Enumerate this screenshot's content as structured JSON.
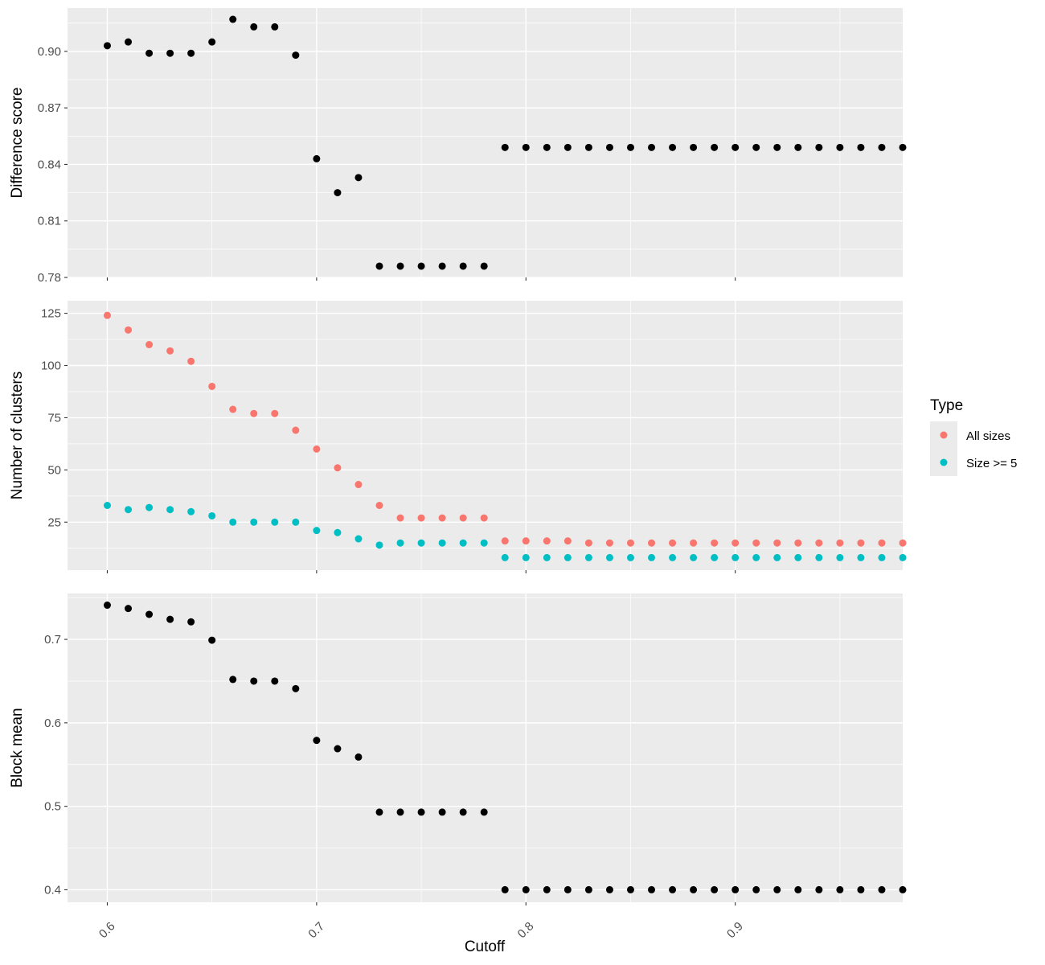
{
  "xlabel": "Cutoff",
  "x_ticks": [
    0.6,
    0.7,
    0.8,
    0.9
  ],
  "x_tick_labels": [
    "0.6",
    "0.7",
    "0.8",
    "0.9"
  ],
  "legend": {
    "title": "Type",
    "items": [
      {
        "label": "All sizes",
        "color": "#F8766D"
      },
      {
        "label": "Size >= 5",
        "color": "#00BFC4"
      }
    ]
  },
  "chart_data": [
    {
      "type": "scatter",
      "ylabel": "Difference score",
      "xlim": [
        0.581,
        0.98
      ],
      "ylim": [
        0.78,
        0.923
      ],
      "y_ticks": [
        0.78,
        0.81,
        0.84,
        0.87,
        0.9
      ],
      "y_tick_labels": [
        "0.78",
        "0.81",
        "0.84",
        "0.87",
        "0.90"
      ],
      "grid": true,
      "series": [
        {
          "color": "#000000",
          "x": [
            0.6,
            0.61,
            0.62,
            0.63,
            0.64,
            0.65,
            0.66,
            0.67,
            0.68,
            0.69,
            0.7,
            0.71,
            0.72,
            0.73,
            0.74,
            0.75,
            0.76,
            0.77,
            0.78,
            0.79,
            0.8,
            0.81,
            0.82,
            0.83,
            0.84,
            0.85,
            0.86,
            0.87,
            0.88,
            0.89,
            0.9,
            0.91,
            0.92,
            0.93,
            0.94,
            0.95,
            0.96,
            0.97,
            0.98
          ],
          "y": [
            0.903,
            0.905,
            0.899,
            0.899,
            0.899,
            0.905,
            0.917,
            0.913,
            0.913,
            0.898,
            0.843,
            0.825,
            0.833,
            0.786,
            0.786,
            0.786,
            0.786,
            0.786,
            0.786,
            0.849,
            0.849,
            0.849,
            0.849,
            0.849,
            0.849,
            0.849,
            0.849,
            0.849,
            0.849,
            0.849,
            0.849,
            0.849,
            0.849,
            0.849,
            0.849,
            0.849,
            0.849,
            0.849,
            0.849
          ]
        }
      ]
    },
    {
      "type": "scatter",
      "ylabel": "Number of clusters",
      "xlim": [
        0.581,
        0.98
      ],
      "ylim": [
        2,
        131
      ],
      "y_ticks": [
        25,
        50,
        75,
        100,
        125
      ],
      "y_tick_labels": [
        "25",
        "50",
        "75",
        "100",
        "125"
      ],
      "grid": true,
      "series": [
        {
          "name": "All sizes",
          "color": "#F8766D",
          "x": [
            0.6,
            0.61,
            0.62,
            0.63,
            0.64,
            0.65,
            0.66,
            0.67,
            0.68,
            0.69,
            0.7,
            0.71,
            0.72,
            0.73,
            0.74,
            0.75,
            0.76,
            0.77,
            0.78,
            0.79,
            0.8,
            0.81,
            0.82,
            0.83,
            0.84,
            0.85,
            0.86,
            0.87,
            0.88,
            0.89,
            0.9,
            0.91,
            0.92,
            0.93,
            0.94,
            0.95,
            0.96,
            0.97,
            0.98
          ],
          "y": [
            124,
            117,
            110,
            107,
            102,
            90,
            79,
            77,
            77,
            69,
            60,
            51,
            43,
            33,
            27,
            27,
            27,
            27,
            27,
            16,
            16,
            16,
            16,
            15,
            15,
            15,
            15,
            15,
            15,
            15,
            15,
            15,
            15,
            15,
            15,
            15,
            15,
            15,
            15
          ]
        },
        {
          "name": "Size >= 5",
          "color": "#00BFC4",
          "x": [
            0.6,
            0.61,
            0.62,
            0.63,
            0.64,
            0.65,
            0.66,
            0.67,
            0.68,
            0.69,
            0.7,
            0.71,
            0.72,
            0.73,
            0.74,
            0.75,
            0.76,
            0.77,
            0.78,
            0.79,
            0.8,
            0.81,
            0.82,
            0.83,
            0.84,
            0.85,
            0.86,
            0.87,
            0.88,
            0.89,
            0.9,
            0.91,
            0.92,
            0.93,
            0.94,
            0.95,
            0.96,
            0.97,
            0.98
          ],
          "y": [
            33,
            31,
            32,
            31,
            30,
            28,
            25,
            25,
            25,
            25,
            21,
            20,
            17,
            14,
            15,
            15,
            15,
            15,
            15,
            8,
            8,
            8,
            8,
            8,
            8,
            8,
            8,
            8,
            8,
            8,
            8,
            8,
            8,
            8,
            8,
            8,
            8,
            8,
            8
          ]
        }
      ]
    },
    {
      "type": "scatter",
      "ylabel": "Block mean",
      "xlim": [
        0.581,
        0.98
      ],
      "ylim": [
        0.385,
        0.755
      ],
      "y_ticks": [
        0.4,
        0.5,
        0.6,
        0.7
      ],
      "y_tick_labels": [
        "0.4",
        "0.5",
        "0.6",
        "0.7"
      ],
      "grid": true,
      "series": [
        {
          "color": "#000000",
          "x": [
            0.6,
            0.61,
            0.62,
            0.63,
            0.64,
            0.65,
            0.66,
            0.67,
            0.68,
            0.69,
            0.7,
            0.71,
            0.72,
            0.73,
            0.74,
            0.75,
            0.76,
            0.77,
            0.78,
            0.79,
            0.8,
            0.81,
            0.82,
            0.83,
            0.84,
            0.85,
            0.86,
            0.87,
            0.88,
            0.89,
            0.9,
            0.91,
            0.92,
            0.93,
            0.94,
            0.95,
            0.96,
            0.97,
            0.98
          ],
          "y": [
            0.741,
            0.737,
            0.73,
            0.724,
            0.721,
            0.699,
            0.652,
            0.65,
            0.65,
            0.641,
            0.579,
            0.569,
            0.559,
            0.493,
            0.493,
            0.493,
            0.493,
            0.493,
            0.493,
            0.4,
            0.4,
            0.4,
            0.4,
            0.4,
            0.4,
            0.4,
            0.4,
            0.4,
            0.4,
            0.4,
            0.4,
            0.4,
            0.4,
            0.4,
            0.4,
            0.4,
            0.4,
            0.4,
            0.4
          ]
        }
      ]
    }
  ]
}
